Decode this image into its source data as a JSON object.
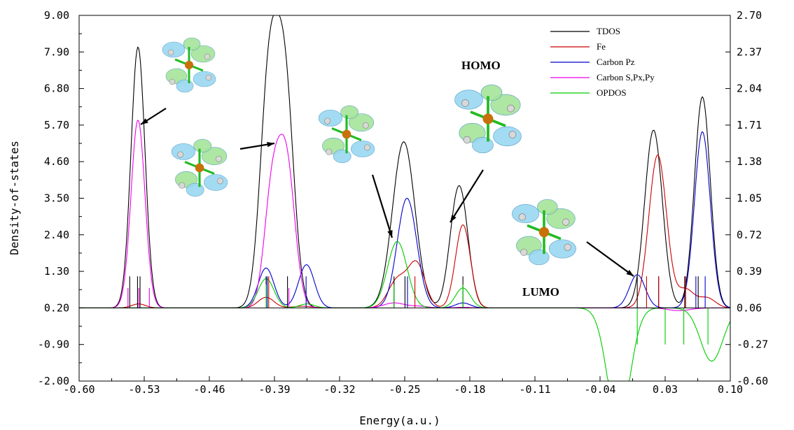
{
  "chart_data": {
    "type": "line",
    "title": "",
    "xlabel": "Energy(a.u.)",
    "ylabel": "Density-of-states",
    "xlim": [
      -0.6,
      0.1
    ],
    "ylim": [
      -2.0,
      9.0
    ],
    "y2lim": [
      -0.6,
      2.7
    ],
    "x_ticks": [
      "-0.60",
      "-0.53",
      "-0.46",
      "-0.39",
      "-0.32",
      "-0.25",
      "-0.18",
      "-0.11",
      "-0.04",
      "0.03",
      "0.10"
    ],
    "y_ticks": [
      "9.00",
      "7.90",
      "6.80",
      "5.70",
      "4.60",
      "3.50",
      "2.40",
      "1.30",
      "0.20",
      "-0.90",
      "-2.00"
    ],
    "y2_ticks": [
      "2.70",
      "2.37",
      "2.04",
      "1.71",
      "1.38",
      "1.05",
      "0.72",
      "0.39",
      "0.06",
      "-0.27",
      "-0.60"
    ],
    "legend_position": "top-right",
    "grid": false,
    "series": [
      {
        "name": "TDOS",
        "color": "#000000",
        "peaks": [
          [
            -0.5367,
            7.85,
            0.0075
          ],
          [
            -0.3958,
            6.8,
            0.0095
          ],
          [
            -0.3787,
            6.55,
            0.0095
          ],
          [
            -0.251,
            5.0,
            0.012
          ],
          [
            -0.196,
            2.05,
            0.008
          ],
          [
            -0.1874,
            2.2,
            0.008
          ],
          [
            0.0175,
            5.35,
            0.0095
          ],
          [
            0.07,
            6.35,
            0.0085
          ]
        ]
      },
      {
        "name": "Fe",
        "color": "#cc0000",
        "peaks": [
          [
            -0.536,
            0.12,
            0.0075
          ],
          [
            -0.399,
            0.32,
            0.0085
          ],
          [
            -0.36,
            0.05,
            0.01
          ],
          [
            -0.2575,
            0.85,
            0.01
          ],
          [
            -0.237,
            1.3,
            0.009
          ],
          [
            -0.1874,
            2.5,
            0.008
          ],
          [
            0.022,
            4.6,
            0.0095
          ],
          [
            0.052,
            0.55,
            0.009
          ],
          [
            0.075,
            0.3,
            0.009
          ]
        ]
      },
      {
        "name": "Carbon Pz",
        "color": "#0000cc",
        "peaks": [
          [
            -0.399,
            1.2,
            0.0085
          ],
          [
            -0.3556,
            1.3,
            0.0085
          ],
          [
            -0.2475,
            3.3,
            0.0105
          ],
          [
            -0.1874,
            0.15,
            0.008
          ],
          [
            0.0,
            1.0,
            0.0085
          ],
          [
            0.07,
            5.3,
            0.0085
          ]
        ]
      },
      {
        "name": "Carbon S,Px,Py",
        "color": "#ee00ee",
        "peaks": [
          [
            -0.5367,
            5.65,
            0.0075
          ],
          [
            -0.3925,
            3.4,
            0.0085
          ],
          [
            -0.377,
            4.25,
            0.009
          ],
          [
            -0.2615,
            0.15,
            0.011
          ],
          [
            -0.235,
            0.05,
            0.01
          ],
          [
            -0.1874,
            0.02,
            0.008
          ]
        ],
        "negative_peaks": [
          [
            0.045,
            0.08,
            0.012
          ]
        ]
      },
      {
        "name": "OPDOS",
        "color": "#00cc00",
        "peaks": [
          [
            -0.399,
            0.88,
            0.0085
          ],
          [
            -0.355,
            0.12,
            0.008
          ],
          [
            -0.258,
            2.0,
            0.0105
          ],
          [
            -0.1874,
            0.6,
            0.008
          ]
        ],
        "negative_peaks": [
          [
            -0.02,
            3.5,
            0.012
          ],
          [
            0.08,
            1.6,
            0.012
          ]
        ]
      }
    ],
    "stick_lines": [
      {
        "color": "#000000",
        "positions": [
          -0.5456,
          -0.5372,
          -0.5345,
          -0.399,
          -0.376,
          -0.2615,
          -0.2497,
          -0.1874,
          0.0,
          0.023,
          0.051,
          0.0655
        ],
        "top": 1.15,
        "bottom": 0.2
      },
      {
        "color": "#ee00ee",
        "positions": [
          -0.5475,
          -0.5358,
          -0.5245,
          -0.3745
        ],
        "top": 0.8,
        "bottom": 0.2
      },
      {
        "color": "#0000cc",
        "positions": [
          -0.3978,
          -0.356,
          -0.247,
          0.063,
          0.073
        ],
        "top": 1.15,
        "bottom": 0.2
      },
      {
        "color": "#cc0000",
        "positions": [
          -0.3962,
          -0.239,
          0.01,
          0.023,
          0.052
        ],
        "top": 1.15,
        "bottom": 0.2
      },
      {
        "color": "#00cc00",
        "positions": [
          -0.399,
          -0.2615,
          -0.1874
        ],
        "top": 0.9,
        "bottom": 0.2
      },
      {
        "color": "#00cc00",
        "positions": [
          0.0,
          0.03,
          0.05,
          0.076
        ],
        "top": 0.2,
        "bottom": -0.9
      }
    ],
    "annotations": [
      "HOMO",
      "LUMO"
    ]
  }
}
